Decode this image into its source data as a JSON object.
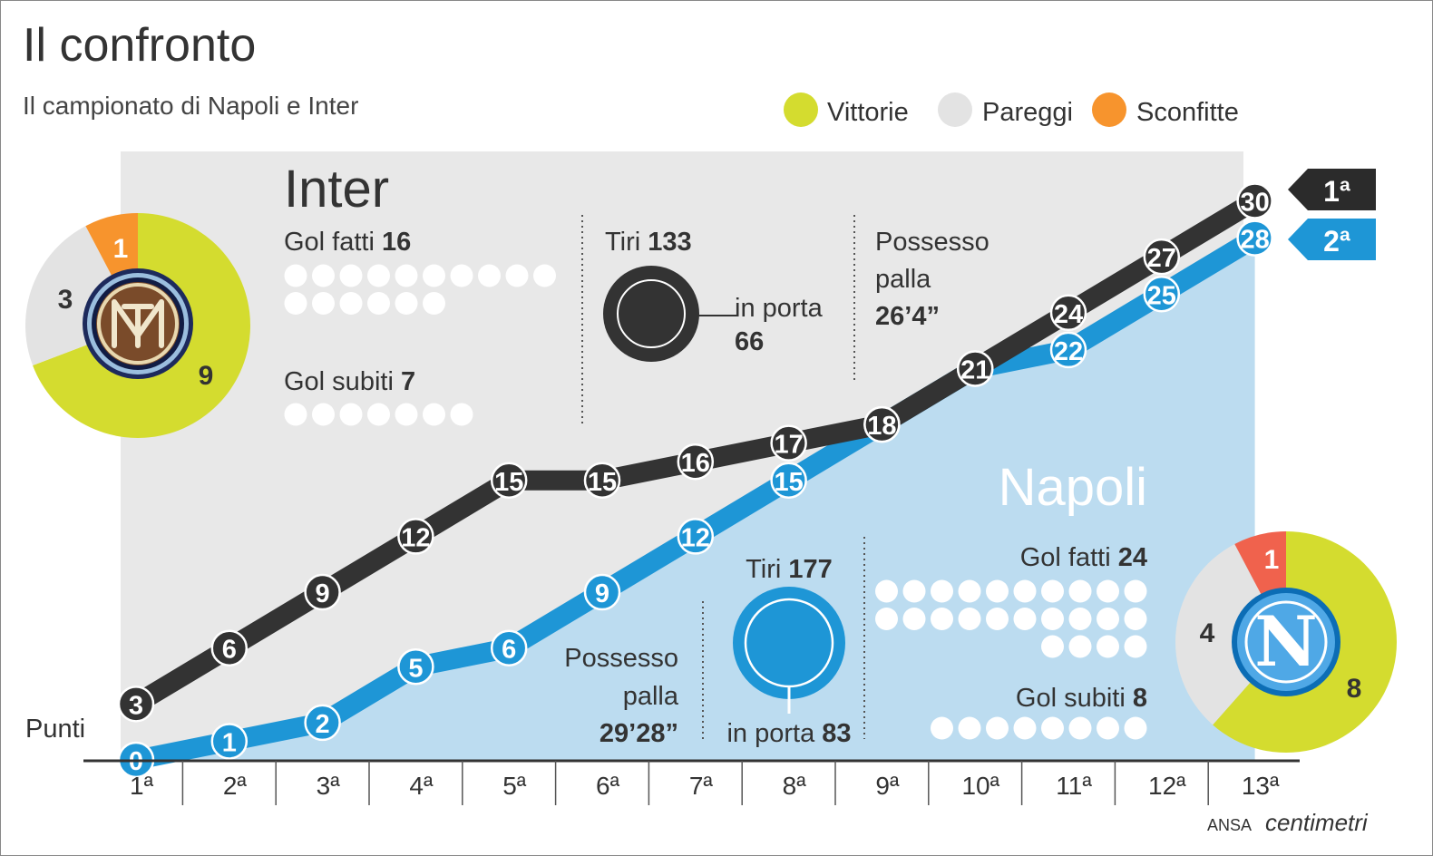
{
  "title": "Il confronto",
  "subtitle": "Il campionato di Napoli e Inter",
  "legend": [
    {
      "label": "Vittorie",
      "color": "#d4dc2f"
    },
    {
      "label": "Pareggi",
      "color": "#e3e3e3"
    },
    {
      "label": "Sconfitte",
      "color": "#f7942d"
    }
  ],
  "ylabel": "Punti",
  "source": {
    "ansa": "ANSA",
    "brand": "centimetri"
  },
  "colors": {
    "inter": "#333333",
    "napoli": "#1e96d6",
    "napoli_area": "#bcdcf0",
    "inter_panel": "#e8e8e8",
    "win": "#d4dc2f",
    "draw": "#e3e3e3",
    "loss_inter": "#f7942d",
    "loss_napoli": "#f0624d"
  },
  "chart_data": {
    "type": "line",
    "categories": [
      "1ª",
      "2ª",
      "3ª",
      "4ª",
      "5ª",
      "6ª",
      "7ª",
      "8ª",
      "9ª",
      "10ª",
      "11ª",
      "12ª",
      "13ª"
    ],
    "series": [
      {
        "name": "Inter",
        "values": [
          3,
          6,
          9,
          12,
          15,
          15,
          16,
          17,
          18,
          21,
          24,
          27,
          30
        ],
        "rank": "1ª"
      },
      {
        "name": "Napoli",
        "values": [
          0,
          1,
          2,
          5,
          6,
          9,
          12,
          15,
          18,
          21,
          22,
          25,
          28
        ],
        "rank": "2ª"
      }
    ],
    "ylim": [
      0,
      30
    ]
  },
  "inter": {
    "name": "Inter",
    "record": {
      "wins": 9,
      "draws": 3,
      "losses": 1
    },
    "gol_fatti_label": "Gol fatti",
    "gol_fatti": 16,
    "gol_subiti_label": "Gol subiti",
    "gol_subiti": 7,
    "tiri_label": "Tiri",
    "tiri": 133,
    "in_porta_label": "in porta",
    "in_porta": 66,
    "possesso_line1": "Possesso",
    "possesso_line2": "palla",
    "possesso": "26’4”"
  },
  "napoli": {
    "name": "Napoli",
    "record": {
      "wins": 8,
      "draws": 4,
      "losses": 1
    },
    "gol_fatti_label": "Gol fatti",
    "gol_fatti": 24,
    "gol_subiti_label": "Gol subiti",
    "gol_subiti": 8,
    "tiri_label": "Tiri",
    "tiri": 177,
    "in_porta_label": "in porta",
    "in_porta": 83,
    "possesso_line1": "Possesso",
    "possesso_line2": "palla",
    "possesso": "29’28”"
  }
}
